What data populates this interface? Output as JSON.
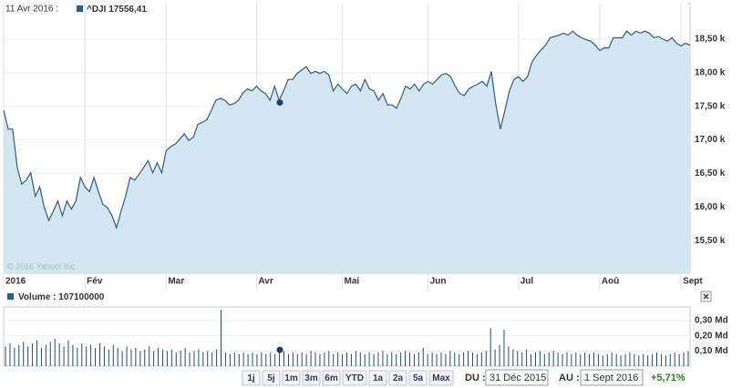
{
  "chart_data": [
    {
      "type": "area",
      "hover_date": "11 Avr 2016 :",
      "legend_label": "^DJI",
      "hover_value": 17556.41,
      "hover_value_label": "17556,41",
      "copyright": "© 2016 Yahoo! Inc.",
      "series": [
        {
          "name": "^DJI",
          "color": "#2b5d8a",
          "fill": "#d4e6f1",
          "values": [
            17440,
            17160,
            17160,
            16590,
            16340,
            16400,
            16510,
            16160,
            16300,
            15990,
            15800,
            15940,
            16090,
            15870,
            16090,
            15970,
            16090,
            16440,
            16300,
            16230,
            16440,
            16230,
            16040,
            15990,
            15870,
            15690,
            15940,
            16160,
            16440,
            16400,
            16490,
            16590,
            16690,
            16510,
            16660,
            16510,
            16840,
            16900,
            16940,
            17010,
            17090,
            16990,
            17040,
            17230,
            17260,
            17300,
            17440,
            17590,
            17620,
            17590,
            17520,
            17540,
            17590,
            17700,
            17760,
            17730,
            17800,
            17730,
            17690,
            17590,
            17800,
            17590,
            17730,
            17900,
            17900,
            17990,
            18040,
            18090,
            17990,
            18020,
            17990,
            18020,
            17970,
            17730,
            17830,
            17760,
            17690,
            17800,
            17830,
            17730,
            17900,
            17760,
            17730,
            17590,
            17690,
            17520,
            17520,
            17470,
            17620,
            17800,
            17760,
            17830,
            17730,
            17830,
            17870,
            17830,
            17900,
            17970,
            17990,
            17940,
            17800,
            17690,
            17660,
            17760,
            17800,
            17830,
            17870,
            17800,
            18020,
            17520,
            17160,
            17440,
            17730,
            17900,
            17940,
            17870,
            17940,
            18160,
            18260,
            18340,
            18410,
            18520,
            18540,
            18560,
            18590,
            18560,
            18620,
            18560,
            18520,
            18490,
            18470,
            18410,
            18330,
            18370,
            18370,
            18520,
            18520,
            18520,
            18620,
            18560,
            18620,
            18590,
            18620,
            18590,
            18520,
            18540,
            18500,
            18470,
            18520,
            18440,
            18400,
            18440,
            18410
          ]
        }
      ],
      "xlim": [
        0,
        152
      ],
      "xticks": [
        {
          "value": 0,
          "label": "2016"
        },
        {
          "value": 18,
          "label": "Fév"
        },
        {
          "value": 36,
          "label": "Mar"
        },
        {
          "value": 56,
          "label": "Avr"
        },
        {
          "value": 75,
          "label": "Mai"
        },
        {
          "value": 94,
          "label": "Jun"
        },
        {
          "value": 114,
          "label": "Jul"
        },
        {
          "value": 132,
          "label": "Aoû"
        },
        {
          "value": 150,
          "label": "Sept"
        }
      ],
      "ylim": [
        15014,
        19029
      ],
      "yticks": [
        {
          "value": 15500,
          "label": "15,50 k"
        },
        {
          "value": 16000,
          "label": "16,00 k"
        },
        {
          "value": 16500,
          "label": "16,50 k"
        },
        {
          "value": 17000,
          "label": "17,00 k"
        },
        {
          "value": 17500,
          "label": "17,50 k"
        },
        {
          "value": 18000,
          "label": "18,00 k"
        },
        {
          "value": 18500,
          "label": "18,50 k"
        }
      ],
      "grid": true
    },
    {
      "type": "bar",
      "legend_label": "Volume :",
      "hover_value": 0.1071,
      "hover_value_label": "107100000",
      "color": "#1f4e79",
      "values": [
        0.13,
        0.15,
        0.12,
        0.14,
        0.16,
        0.13,
        0.15,
        0.17,
        0.12,
        0.14,
        0.16,
        0.18,
        0.15,
        0.13,
        0.17,
        0.14,
        0.12,
        0.15,
        0.13,
        0.14,
        0.12,
        0.15,
        0.13,
        0.11,
        0.14,
        0.12,
        0.1,
        0.13,
        0.11,
        0.12,
        0.1,
        0.11,
        0.13,
        0.1,
        0.12,
        0.11,
        0.1,
        0.11,
        0.09,
        0.1,
        0.12,
        0.09,
        0.1,
        0.11,
        0.09,
        0.1,
        0.09,
        0.11,
        0.37,
        0.09,
        0.08,
        0.09,
        0.08,
        0.09,
        0.08,
        0.09,
        0.08,
        0.09,
        0.08,
        0.09,
        0.08,
        0.09,
        0.1,
        0.08,
        0.09,
        0.08,
        0.09,
        0.08,
        0.1,
        0.09,
        0.08,
        0.09,
        0.1,
        0.08,
        0.09,
        0.08,
        0.09,
        0.08,
        0.1,
        0.09,
        0.08,
        0.09,
        0.08,
        0.09,
        0.1,
        0.08,
        0.09,
        0.08,
        0.09,
        0.1,
        0.09,
        0.08,
        0.09,
        0.12,
        0.08,
        0.09,
        0.08,
        0.09,
        0.08,
        0.1,
        0.09,
        0.08,
        0.09,
        0.1,
        0.09,
        0.08,
        0.09,
        0.1,
        0.25,
        0.11,
        0.14,
        0.24,
        0.13,
        0.11,
        0.1,
        0.09,
        0.11,
        0.08,
        0.09,
        0.1,
        0.08,
        0.09,
        0.1,
        0.09,
        0.08,
        0.09,
        0.08,
        0.09,
        0.08,
        0.09,
        0.08,
        0.09,
        0.08,
        0.07,
        0.08,
        0.09,
        0.08,
        0.07,
        0.08,
        0.09,
        0.08,
        0.07,
        0.08,
        0.07,
        0.08,
        0.09,
        0.08,
        0.07,
        0.08,
        0.09,
        0.08,
        0.09,
        0.1
      ],
      "ylim": [
        0,
        0.39
      ],
      "yticks": [
        {
          "value": 0.1,
          "label": "0,10 Md"
        },
        {
          "value": 0.2,
          "label": "0,20 Md"
        },
        {
          "value": 0.3,
          "label": "0,30 Md"
        }
      ]
    }
  ],
  "controls": {
    "ranges": [
      "1j",
      "5j",
      "1m",
      "3m",
      "6m",
      "YTD",
      "1a",
      "2a",
      "5a",
      "Max"
    ],
    "from_label": "DU :",
    "from": "31 Déc 2015",
    "to_label": "AU :",
    "to": "1 Sept 2016",
    "change": "+5,71%"
  }
}
